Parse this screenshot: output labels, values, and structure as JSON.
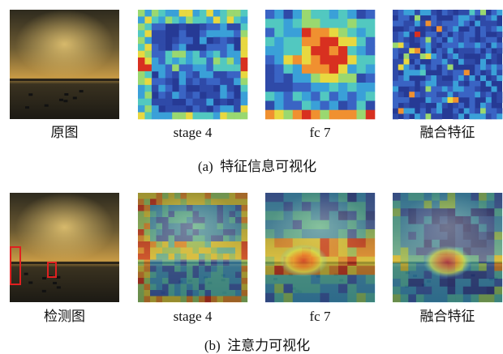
{
  "rows": [
    {
      "panels": [
        "原图",
        "stage 4",
        "fc 7",
        "融合特征"
      ],
      "caption": "(a)  特征信息可视化"
    },
    {
      "panels": [
        "检测图",
        "stage 4",
        "fc 7",
        "融合特征"
      ],
      "caption": "(b)  注意力可视化"
    }
  ]
}
